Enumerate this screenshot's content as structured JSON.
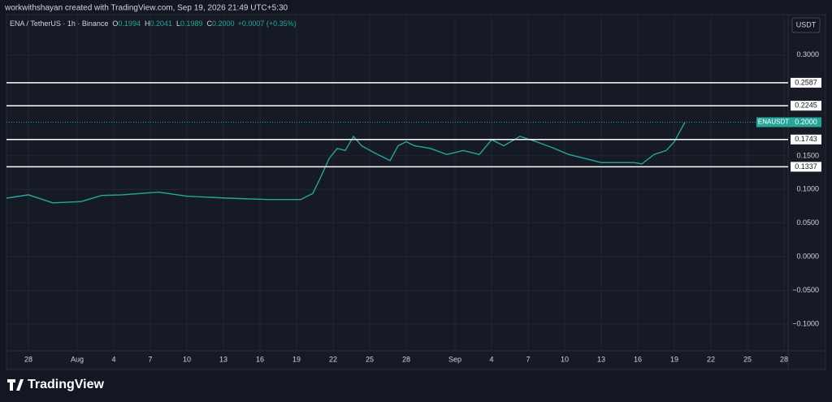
{
  "header": {
    "credit": "workwithshayan created with TradingView.com, Sep 19, 2026 21:49 UTC+5:30"
  },
  "currency": "USDT",
  "brand": "TradingView",
  "chart_data": {
    "type": "line",
    "symbol": "ENA / TetherUS · 1h · Binance",
    "ohlc": [
      {
        "key": "O",
        "value": "0.1994"
      },
      {
        "key": "H",
        "value": "0.2041"
      },
      {
        "key": "L",
        "value": "0.1989"
      },
      {
        "key": "C",
        "value": "0.2000"
      }
    ],
    "change": "+0.0007 (+0.35%)",
    "series": [
      {
        "name": "ENAUSDT",
        "color": "#26a69a",
        "x": [
          -1.8,
          0,
          2,
          4.33,
          6,
          7.67,
          10.67,
          13,
          16.33,
          19.67,
          22.33,
          23.33,
          24,
          24.67,
          25.33,
          26,
          26.67,
          27.33,
          28.33,
          29.67,
          30.33,
          31,
          31.67,
          33,
          34.33,
          35.67,
          37,
          38,
          39,
          40.33,
          41.67,
          43,
          44.33,
          45.67,
          47,
          48.33,
          49.67,
          50.33,
          51.33,
          52.33,
          53,
          53.53,
          53.87
        ],
        "values": [
          0.087,
          0.092,
          0.08,
          0.082,
          0.091,
          0.092,
          0.096,
          0.09,
          0.087,
          0.085,
          0.085,
          0.094,
          0.119,
          0.146,
          0.161,
          0.158,
          0.179,
          0.165,
          0.155,
          0.143,
          0.165,
          0.171,
          0.165,
          0.161,
          0.152,
          0.158,
          0.152,
          0.174,
          0.165,
          0.179,
          0.171,
          0.162,
          0.152,
          0.146,
          0.14,
          0.14,
          0.14,
          0.138,
          0.152,
          0.158,
          0.171,
          0.189,
          0.2
        ]
      }
    ],
    "last_price": {
      "value": 0.2,
      "label": "0.2000"
    },
    "levels": [
      0.2587,
      0.2245,
      0.1743,
      0.1337
    ],
    "xlim": [
      -1.8,
      62.33
    ],
    "ylim": [
      -0.14,
      0.36
    ],
    "xticks": [
      {
        "value": 0,
        "label": "28"
      },
      {
        "value": 4,
        "label": "Aug"
      },
      {
        "value": 7,
        "label": "4"
      },
      {
        "value": 10,
        "label": "7"
      },
      {
        "value": 13,
        "label": "10"
      },
      {
        "value": 16,
        "label": "13"
      },
      {
        "value": 19,
        "label": "16"
      },
      {
        "value": 22,
        "label": "19"
      },
      {
        "value": 25,
        "label": "22"
      },
      {
        "value": 28,
        "label": "25"
      },
      {
        "value": 31,
        "label": "28"
      },
      {
        "value": 35,
        "label": "Sep"
      },
      {
        "value": 38,
        "label": "4"
      },
      {
        "value": 41,
        "label": "7"
      },
      {
        "value": 44,
        "label": "10"
      },
      {
        "value": 47,
        "label": "13"
      },
      {
        "value": 50,
        "label": "16"
      },
      {
        "value": 53,
        "label": "19"
      },
      {
        "value": 56,
        "label": "22"
      },
      {
        "value": 59,
        "label": "25"
      },
      {
        "value": 62,
        "label": "28"
      }
    ],
    "yticks": [
      {
        "value": 0.3,
        "label": "0.3000"
      },
      {
        "value": 0.15,
        "label": "0.1500"
      },
      {
        "value": 0.1,
        "label": "0.1000"
      },
      {
        "value": 0.05,
        "label": "0.0500"
      },
      {
        "value": 0,
        "label": "0.0000"
      },
      {
        "value": -0.05,
        "label": "−0.0500"
      },
      {
        "value": -0.1,
        "label": "−0.1000"
      }
    ],
    "grid": true
  }
}
